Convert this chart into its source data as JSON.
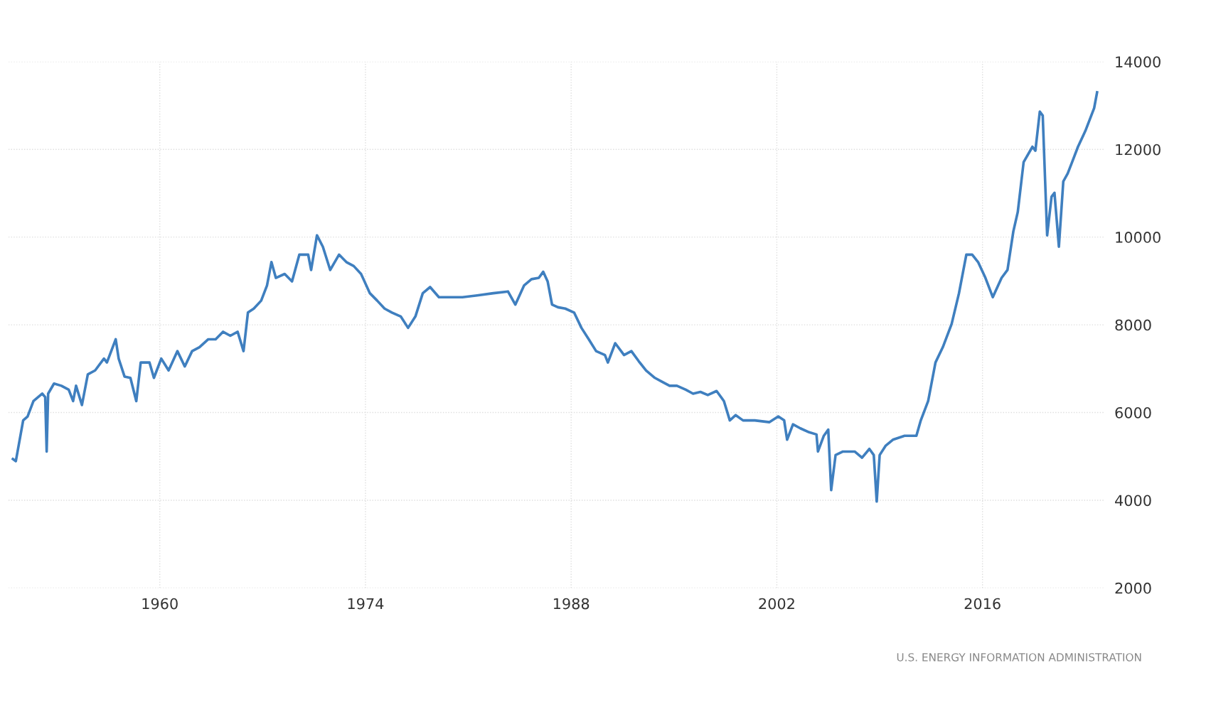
{
  "chart_data": {
    "type": "line",
    "x": [
      1950.0,
      1950.2,
      1950.7,
      1951.0,
      1951.4,
      1952.0,
      1952.2,
      1952.3,
      1952.4,
      1952.8,
      1953.3,
      1953.8,
      1954.1,
      1954.3,
      1954.7,
      1955.1,
      1955.6,
      1956.2,
      1956.4,
      1957.0,
      1957.2,
      1957.6,
      1958.0,
      1958.4,
      1958.7,
      1959.3,
      1959.6,
      1960.1,
      1960.6,
      1961.2,
      1961.7,
      1962.2,
      1962.7,
      1963.3,
      1963.8,
      1964.3,
      1964.8,
      1965.3,
      1965.7,
      1966.0,
      1966.4,
      1966.9,
      1967.3,
      1967.6,
      1967.9,
      1968.5,
      1969.0,
      1969.5,
      1970.1,
      1970.3,
      1970.7,
      1971.1,
      1971.6,
      1972.2,
      1972.7,
      1973.2,
      1973.7,
      1974.3,
      1974.8,
      1975.3,
      1975.8,
      1976.4,
      1976.9,
      1977.4,
      1977.9,
      1978.4,
      1979.0,
      1979.5,
      1980.6,
      1981.6,
      1982.7,
      1983.7,
      1984.2,
      1984.8,
      1985.3,
      1985.8,
      1986.1,
      1986.4,
      1986.7,
      1987.1,
      1987.6,
      1988.2,
      1988.7,
      1989.2,
      1989.7,
      1990.3,
      1990.5,
      1991.0,
      1991.6,
      1992.1,
      1992.6,
      1993.1,
      1993.7,
      1994.2,
      1994.7,
      1995.2,
      1995.8,
      1996.3,
      1996.8,
      1997.3,
      1997.9,
      1998.4,
      1998.8,
      1999.2,
      1999.7,
      2000.5,
      2001.5,
      2002.1,
      2002.5,
      2002.7,
      2003.1,
      2003.6,
      2004.2,
      2004.7,
      2004.8,
      2005.2,
      2005.5,
      2005.7,
      2006.0,
      2006.5,
      2007.3,
      2007.8,
      2008.3,
      2008.6,
      2008.8,
      2009.0,
      2009.4,
      2009.9,
      2010.7,
      2011.5,
      2011.8,
      2012.3,
      2012.8,
      2013.3,
      2013.9,
      2014.4,
      2014.9,
      2015.3,
      2015.7,
      2016.2,
      2016.7,
      2017.3,
      2017.7,
      2018.1,
      2018.4,
      2018.8,
      2019.4,
      2019.6,
      2019.9,
      2020.1,
      2020.4,
      2020.7,
      2020.9,
      2021.2,
      2021.5,
      2021.8,
      2022.1,
      2022.5,
      2023.0,
      2023.6,
      2023.8
    ],
    "series": [
      {
        "color": "#3f7fbf",
        "values": [
          4940,
          4890,
          5820,
          5910,
          6260,
          6430,
          6350,
          5110,
          6430,
          6660,
          6610,
          6520,
          6260,
          6610,
          6170,
          6870,
          6960,
          7230,
          7140,
          7670,
          7230,
          6820,
          6790,
          6260,
          7140,
          7140,
          6790,
          7230,
          6960,
          7400,
          7050,
          7400,
          7490,
          7670,
          7670,
          7840,
          7750,
          7840,
          7400,
          8280,
          8370,
          8550,
          8900,
          9430,
          9070,
          9160,
          8990,
          9600,
          9600,
          9250,
          10040,
          9780,
          9250,
          9600,
          9430,
          9340,
          9160,
          8720,
          8550,
          8370,
          8280,
          8190,
          7930,
          8190,
          8720,
          8860,
          8630,
          8630,
          8630,
          8670,
          8720,
          8760,
          8460,
          8900,
          9040,
          9070,
          9210,
          8990,
          8460,
          8400,
          8370,
          8280,
          7930,
          7670,
          7400,
          7310,
          7140,
          7580,
          7310,
          7400,
          7170,
          6960,
          6790,
          6700,
          6610,
          6610,
          6520,
          6430,
          6470,
          6400,
          6490,
          6260,
          5820,
          5940,
          5820,
          5820,
          5780,
          5910,
          5820,
          5380,
          5730,
          5640,
          5550,
          5500,
          5110,
          5470,
          5610,
          4230,
          5030,
          5110,
          5110,
          4970,
          5170,
          5030,
          3970,
          5030,
          5240,
          5380,
          5470,
          5470,
          5820,
          6260,
          7140,
          7490,
          8020,
          8720,
          9600,
          9600,
          9430,
          9070,
          8630,
          9070,
          9250,
          10130,
          10570,
          11710,
          12060,
          11970,
          12860,
          12770,
          10040,
          10920,
          11010,
          9780,
          11270,
          11450,
          11710,
          12060,
          12420,
          12940,
          13300
        ]
      }
    ],
    "xlim": [
      1949.7,
      2024.3
    ],
    "ylim": [
      2000,
      14000
    ],
    "xticks": [
      1960,
      1974,
      1988,
      2002,
      2016
    ],
    "yticks": [
      2000,
      4000,
      6000,
      8000,
      10000,
      12000,
      14000
    ],
    "grid": true,
    "line_style": "solid",
    "marker": "none",
    "legend": false,
    "annotations": [
      "U.S. ENERGY INFORMATION ADMINISTRATION"
    ]
  }
}
